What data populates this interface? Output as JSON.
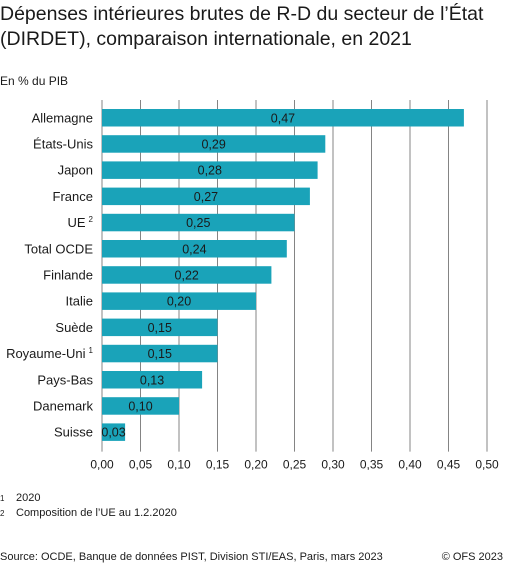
{
  "title": "Dépenses intérieures brutes de R-D du secteur de l’État (DIRDET), comparaison internationale, en 2021",
  "unit_label": "En % du PIB",
  "colors": {
    "bar": "#1aa3b9",
    "grid": "#666666",
    "text": "#1a1a1a"
  },
  "chart_data": {
    "type": "bar",
    "orientation": "horizontal",
    "categories": [
      "Allemagne",
      "États-Unis",
      "Japon",
      "France",
      "UE",
      "Total OCDE",
      "Finlande",
      "Italie",
      "Suède",
      "Royaume-Uni",
      "Pays-Bas",
      "Danemark",
      "Suisse"
    ],
    "category_notes": [
      "",
      "",
      "",
      "",
      "2",
      "",
      "",
      "",
      "",
      "1",
      "",
      "",
      ""
    ],
    "values": [
      0.47,
      0.29,
      0.28,
      0.27,
      0.25,
      0.24,
      0.22,
      0.2,
      0.15,
      0.15,
      0.13,
      0.1,
      0.03
    ],
    "value_labels": [
      "0,47",
      "0,29",
      "0,28",
      "0,27",
      "0,25",
      "0,24",
      "0,22",
      "0,20",
      "0,15",
      "0,15",
      "0,13",
      "0,10",
      "0,03"
    ],
    "xlim": [
      0,
      0.5
    ],
    "xticks": [
      0,
      0.05,
      0.1,
      0.15,
      0.2,
      0.25,
      0.3,
      0.35,
      0.4,
      0.45,
      0.5
    ],
    "xtick_labels": [
      "0,00",
      "0,05",
      "0,10",
      "0,15",
      "0,20",
      "0,25",
      "0,30",
      "0,35",
      "0,40",
      "0,45",
      "0,50"
    ],
    "grid": "vertical"
  },
  "footnotes": [
    {
      "num": "1",
      "text": "2020"
    },
    {
      "num": "2",
      "text": "Composition de l’UE au 1.2.2020"
    }
  ],
  "source": "Source: OCDE, Banque de données PIST, Division STI/EAS, Paris, mars 2023",
  "copyright": "© OFS 2023"
}
